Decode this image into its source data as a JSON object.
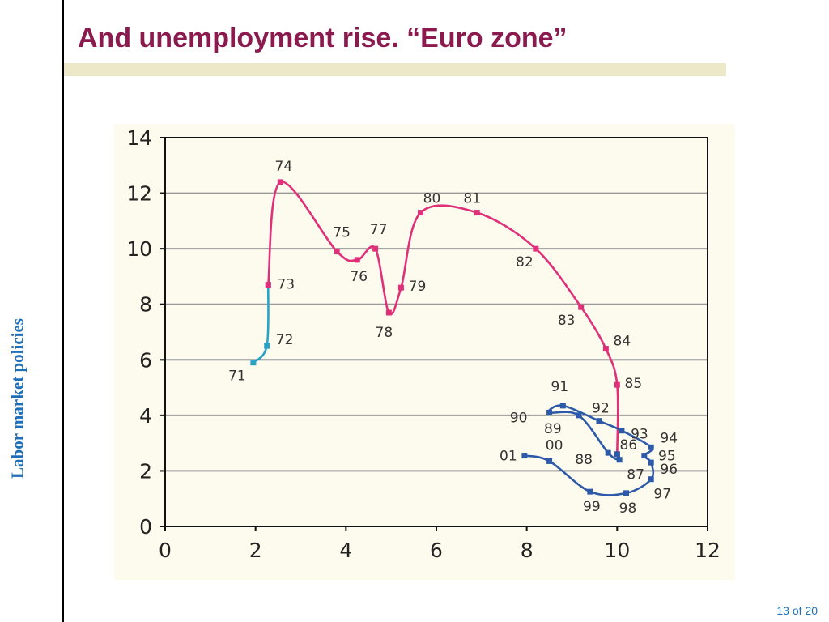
{
  "slide": {
    "title": "And unemployment rise. “Euro zone”",
    "side_label": "Labor market policies",
    "page_number": "13 of 20"
  },
  "colors": {
    "title": "#8b1a4e",
    "accent_bar": "#ece8c8",
    "side_label": "#1f6fb8",
    "chart_bg": "#fdfbed",
    "series_teal": "#2aa3c8",
    "series_magenta": "#e0307a",
    "series_blue": "#2c5aa8"
  },
  "chart_data": {
    "type": "line",
    "title": "",
    "xlabel": "",
    "ylabel": "",
    "xlim": [
      0,
      12
    ],
    "ylim": [
      0,
      14
    ],
    "xticks": [
      0,
      2,
      4,
      6,
      8,
      10,
      12
    ],
    "yticks": [
      0,
      2,
      4,
      6,
      8,
      10,
      12,
      14
    ],
    "grid": "horizontal",
    "series": [
      {
        "color": "#2aa3c8",
        "points": [
          {
            "label": "71",
            "x": 1.95,
            "y": 5.9
          },
          {
            "label": "72",
            "x": 2.25,
            "y": 6.5
          },
          {
            "label": "73",
            "x": 2.28,
            "y": 8.7
          }
        ]
      },
      {
        "color": "#e0307a",
        "points": [
          {
            "label": "73",
            "x": 2.28,
            "y": 8.7
          },
          {
            "label": "74",
            "x": 2.55,
            "y": 12.4
          },
          {
            "label": "75",
            "x": 3.8,
            "y": 9.9
          },
          {
            "label": "76",
            "x": 4.25,
            "y": 9.6
          },
          {
            "label": "77",
            "x": 4.65,
            "y": 10.0
          },
          {
            "label": "78",
            "x": 4.95,
            "y": 7.7
          },
          {
            "label": "79",
            "x": 5.22,
            "y": 8.6
          },
          {
            "label": "80",
            "x": 5.65,
            "y": 11.3
          },
          {
            "label": "81",
            "x": 6.9,
            "y": 11.3
          },
          {
            "label": "82",
            "x": 8.2,
            "y": 10.0
          },
          {
            "label": "83",
            "x": 9.2,
            "y": 7.9
          },
          {
            "label": "84",
            "x": 9.75,
            "y": 6.4
          },
          {
            "label": "85",
            "x": 10.0,
            "y": 5.1
          },
          {
            "label": "86",
            "x": 10.0,
            "y": 2.6
          }
        ]
      },
      {
        "color": "#2c5aa8",
        "points": [
          {
            "label": "86",
            "x": 10.0,
            "y": 2.6
          },
          {
            "label": "87",
            "x": 10.05,
            "y": 2.4
          },
          {
            "label": "88",
            "x": 9.8,
            "y": 2.65
          },
          {
            "label": "89",
            "x": 9.15,
            "y": 4.0
          },
          {
            "label": "90",
            "x": 8.5,
            "y": 4.1
          },
          {
            "label": "91",
            "x": 8.8,
            "y": 4.35
          },
          {
            "label": "92",
            "x": 9.6,
            "y": 3.8
          },
          {
            "label": "93",
            "x": 10.1,
            "y": 3.45
          },
          {
            "label": "94",
            "x": 10.75,
            "y": 2.85
          },
          {
            "label": "95",
            "x": 10.6,
            "y": 2.55
          },
          {
            "label": "96",
            "x": 10.75,
            "y": 2.3
          },
          {
            "label": "97",
            "x": 10.75,
            "y": 1.7
          },
          {
            "label": "98",
            "x": 10.2,
            "y": 1.2
          },
          {
            "label": "99",
            "x": 9.4,
            "y": 1.25
          },
          {
            "label": "00",
            "x": 8.5,
            "y": 2.35
          },
          {
            "label": "01",
            "x": 7.95,
            "y": 2.55
          }
        ]
      }
    ]
  }
}
